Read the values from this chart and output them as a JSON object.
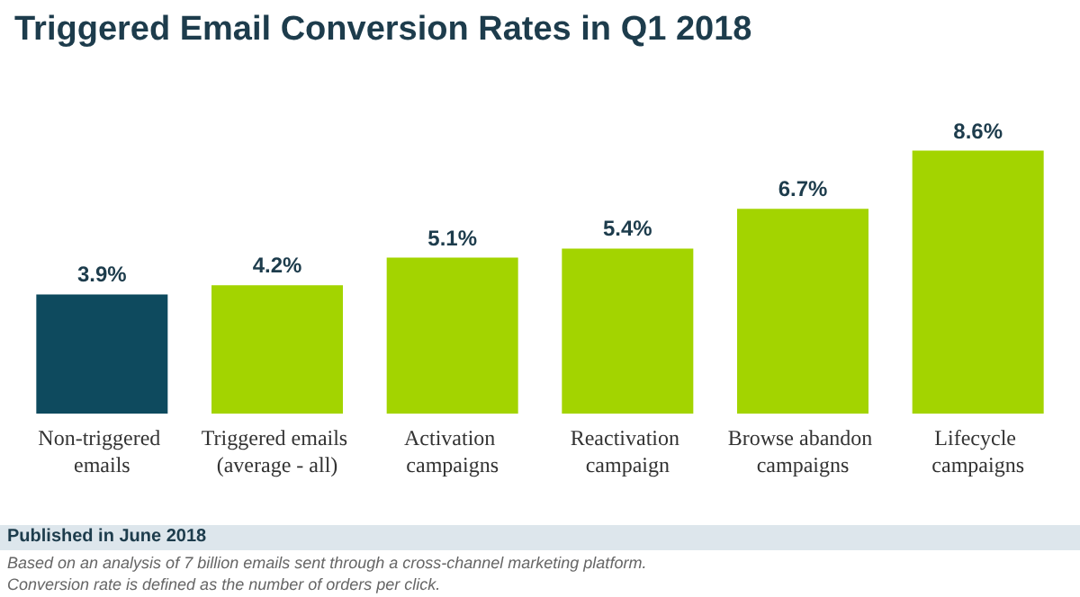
{
  "chart_data": {
    "type": "bar",
    "title": "Triggered Email Conversion Rates in Q1 2018",
    "categories": [
      "Non-triggered emails",
      "Triggered emails (average - all)",
      "Activation campaigns",
      "Reactivation campaign",
      "Browse abandon campaigns",
      "Lifecycle campaigns"
    ],
    "values": [
      3.9,
      4.2,
      5.1,
      5.4,
      6.7,
      8.6
    ],
    "colors": [
      "#0e4a5e",
      "#a3d400",
      "#a3d400",
      "#a3d400",
      "#a3d400",
      "#a3d400"
    ],
    "value_labels": [
      "3.9%",
      "4.2%",
      "5.1%",
      "5.4%",
      "6.7%",
      "8.6%"
    ],
    "annotations": [
      "Published in June 2018",
      "Based on an analysis of 7 billion emails sent through a cross-channel marketing platform.",
      "Conversion rate is defined as the number of orders per click."
    ]
  }
}
